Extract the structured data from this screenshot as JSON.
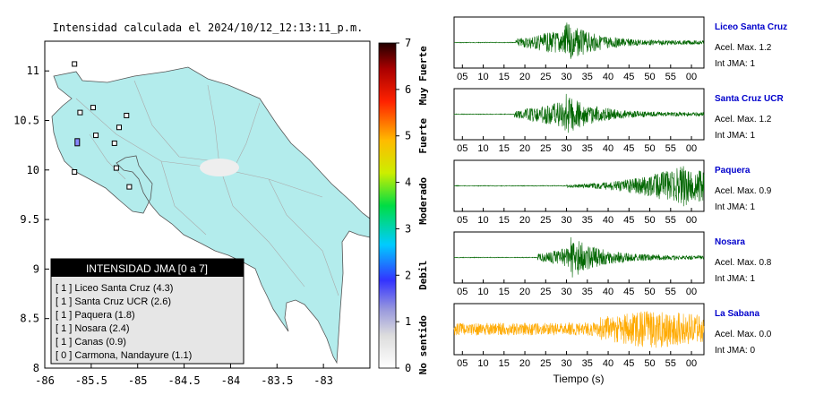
{
  "map": {
    "title": "Intensidad calculada el 2024/10/12_12:13:11_p.m.",
    "lat_ticks": [
      "11",
      "10.5",
      "10",
      "9.5",
      "9",
      "8.5",
      "8"
    ],
    "lon_ticks": [
      "-86",
      "-85.5",
      "-85",
      "-84.5",
      "-84",
      "-83.5",
      "-83"
    ],
    "xlim": [
      -86,
      -82.5
    ],
    "ylim": [
      8,
      11.3
    ],
    "land_color": "#b3ecec",
    "legend": {
      "header": "INTENSIDAD JMA [0 a 7]",
      "items": [
        "[ 1 ]  Liceo Santa Cruz (4.3)",
        "[ 1 ]  Santa Cruz UCR (2.6)",
        "[ 1 ]  Paquera (1.8)",
        "[ 1 ]  Nosara (2.4)",
        "[ 1 ]  Canas (0.9)",
        "[ 0 ]  Carmona, Nandayure (1.1)"
      ]
    },
    "stations": [
      {
        "lon": -85.68,
        "lat": 11.07,
        "intensity": 0
      },
      {
        "lon": -85.48,
        "lat": 10.63,
        "intensity": 0
      },
      {
        "lon": -85.62,
        "lat": 10.58,
        "intensity": 0
      },
      {
        "lon": -85.12,
        "lat": 10.55,
        "intensity": 0
      },
      {
        "lon": -85.2,
        "lat": 10.43,
        "intensity": 0
      },
      {
        "lon": -85.45,
        "lat": 10.35,
        "intensity": 0
      },
      {
        "lon": -85.65,
        "lat": 10.28,
        "intensity": 2
      },
      {
        "lon": -85.25,
        "lat": 10.27,
        "intensity": 0
      },
      {
        "lon": -85.23,
        "lat": 10.02,
        "intensity": 0
      },
      {
        "lon": -85.68,
        "lat": 9.98,
        "intensity": 0
      },
      {
        "lon": -85.09,
        "lat": 9.83,
        "intensity": 0
      }
    ]
  },
  "colorbar": {
    "ticks": [
      "0",
      "1",
      "2",
      "3",
      "4",
      "5",
      "6",
      "7"
    ],
    "labels": [
      "No sentido",
      "Debil",
      "Moderado",
      "Fuerte",
      "Muy Fuerte"
    ],
    "colors": [
      "#ffffff",
      "#c0c0c0",
      "#4444ff",
      "#00e0ff",
      "#00dd00",
      "#ffee00",
      "#ff8800",
      "#ff0000",
      "#880000",
      "#300000"
    ]
  },
  "seismograms": {
    "xlabel": "Tiempo (s)",
    "x_ticks": [
      "05",
      "10",
      "15",
      "20",
      "25",
      "30",
      "35",
      "40",
      "45",
      "50",
      "55",
      "00"
    ],
    "stations": [
      {
        "name": "Liceo Santa Cruz",
        "accel": "Acel. Max. 1.2",
        "jma": "Int JMA: 1",
        "color": "#006600",
        "onset": 17.8,
        "peak": 29.5,
        "kind": "burst"
      },
      {
        "name": "Santa Cruz UCR",
        "accel": "Acel. Max. 1.2",
        "jma": "Int JMA: 1",
        "color": "#006600",
        "onset": 17.5,
        "peak": 29.5,
        "kind": "burst"
      },
      {
        "name": "Paquera",
        "accel": "Acel. Max. 0.9",
        "jma": "Int JMA: 1",
        "color": "#006600",
        "onset": 30,
        "peak": 59,
        "kind": "grow"
      },
      {
        "name": "Nosara",
        "accel": "Acel. Max. 0.8",
        "jma": "Int JMA: 1",
        "color": "#006600",
        "onset": 23,
        "peak": 31,
        "kind": "burst"
      },
      {
        "name": "La Sabana",
        "accel": "Acel. Max. 0.0",
        "jma": "Int JMA: 0",
        "color": "#ffaa00",
        "onset": 0,
        "peak": 52,
        "kind": "noise"
      }
    ]
  }
}
